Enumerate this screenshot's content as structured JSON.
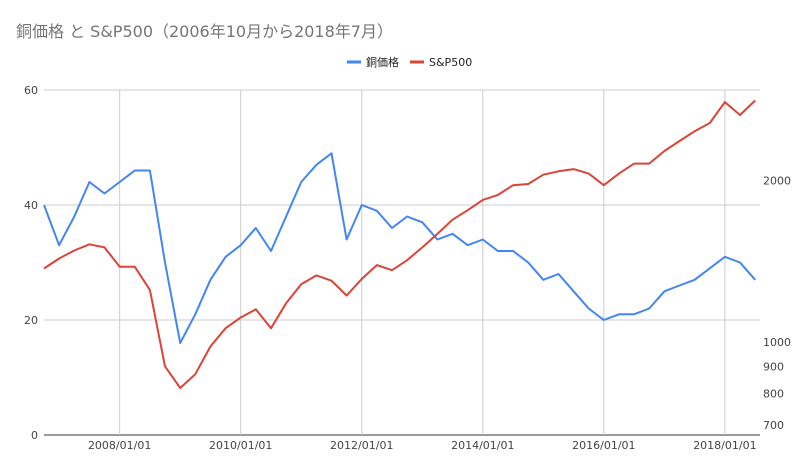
{
  "chart_data": {
    "type": "line",
    "title": "銅価格 と S&P500（2006年10月から2018年7月）",
    "legend_position": "top",
    "grid": true,
    "x": [
      "2006-10",
      "2007-01",
      "2007-04",
      "2007-07",
      "2007-10",
      "2008-01",
      "2008-04",
      "2008-07",
      "2008-10",
      "2009-01",
      "2009-04",
      "2009-07",
      "2009-10",
      "2010-01",
      "2010-04",
      "2010-07",
      "2010-10",
      "2011-01",
      "2011-04",
      "2011-07",
      "2011-10",
      "2012-01",
      "2012-04",
      "2012-07",
      "2012-10",
      "2013-01",
      "2013-04",
      "2013-07",
      "2013-10",
      "2014-01",
      "2014-04",
      "2014-07",
      "2014-10",
      "2015-01",
      "2015-04",
      "2015-07",
      "2015-10",
      "2016-01",
      "2016-04",
      "2016-07",
      "2016-10",
      "2017-01",
      "2017-04",
      "2017-07",
      "2017-10",
      "2018-01",
      "2018-04",
      "2018-07"
    ],
    "x_ticks": [
      "2008/01/01",
      "2010/01/01",
      "2012/01/01",
      "2014/01/01",
      "2016/01/01",
      "2018/01/01"
    ],
    "left_axis": {
      "ticks": [
        "0",
        "20",
        "40",
        "60"
      ],
      "range": [
        0,
        60
      ]
    },
    "right_axis": {
      "ticks": [
        "700",
        "800",
        "900",
        "1000",
        "2000"
      ],
      "range": [
        670,
        2950
      ],
      "scale": "log"
    },
    "series": [
      {
        "name": "銅価格",
        "axis": "left",
        "color": "#4285f4",
        "values": [
          40,
          33,
          38,
          44,
          42,
          44,
          46,
          46,
          30,
          16,
          21,
          27,
          31,
          33,
          36,
          32,
          38,
          44,
          47,
          49,
          34,
          40,
          39,
          36,
          38,
          37,
          34,
          35,
          33,
          34,
          32,
          32,
          30,
          27,
          28,
          25,
          22,
          20,
          21,
          21,
          22,
          25,
          26,
          27,
          29,
          31,
          30,
          27
        ]
      },
      {
        "name": "S&P500",
        "axis": "right",
        "color": "#db4437",
        "values": [
          1370,
          1430,
          1480,
          1520,
          1500,
          1380,
          1380,
          1250,
          900,
          820,
          870,
          980,
          1060,
          1110,
          1150,
          1060,
          1180,
          1280,
          1330,
          1300,
          1220,
          1310,
          1390,
          1360,
          1420,
          1500,
          1590,
          1690,
          1760,
          1840,
          1880,
          1960,
          1970,
          2050,
          2080,
          2100,
          2060,
          1960,
          2060,
          2150,
          2150,
          2270,
          2370,
          2470,
          2560,
          2800,
          2650,
          2820
        ]
      }
    ]
  }
}
